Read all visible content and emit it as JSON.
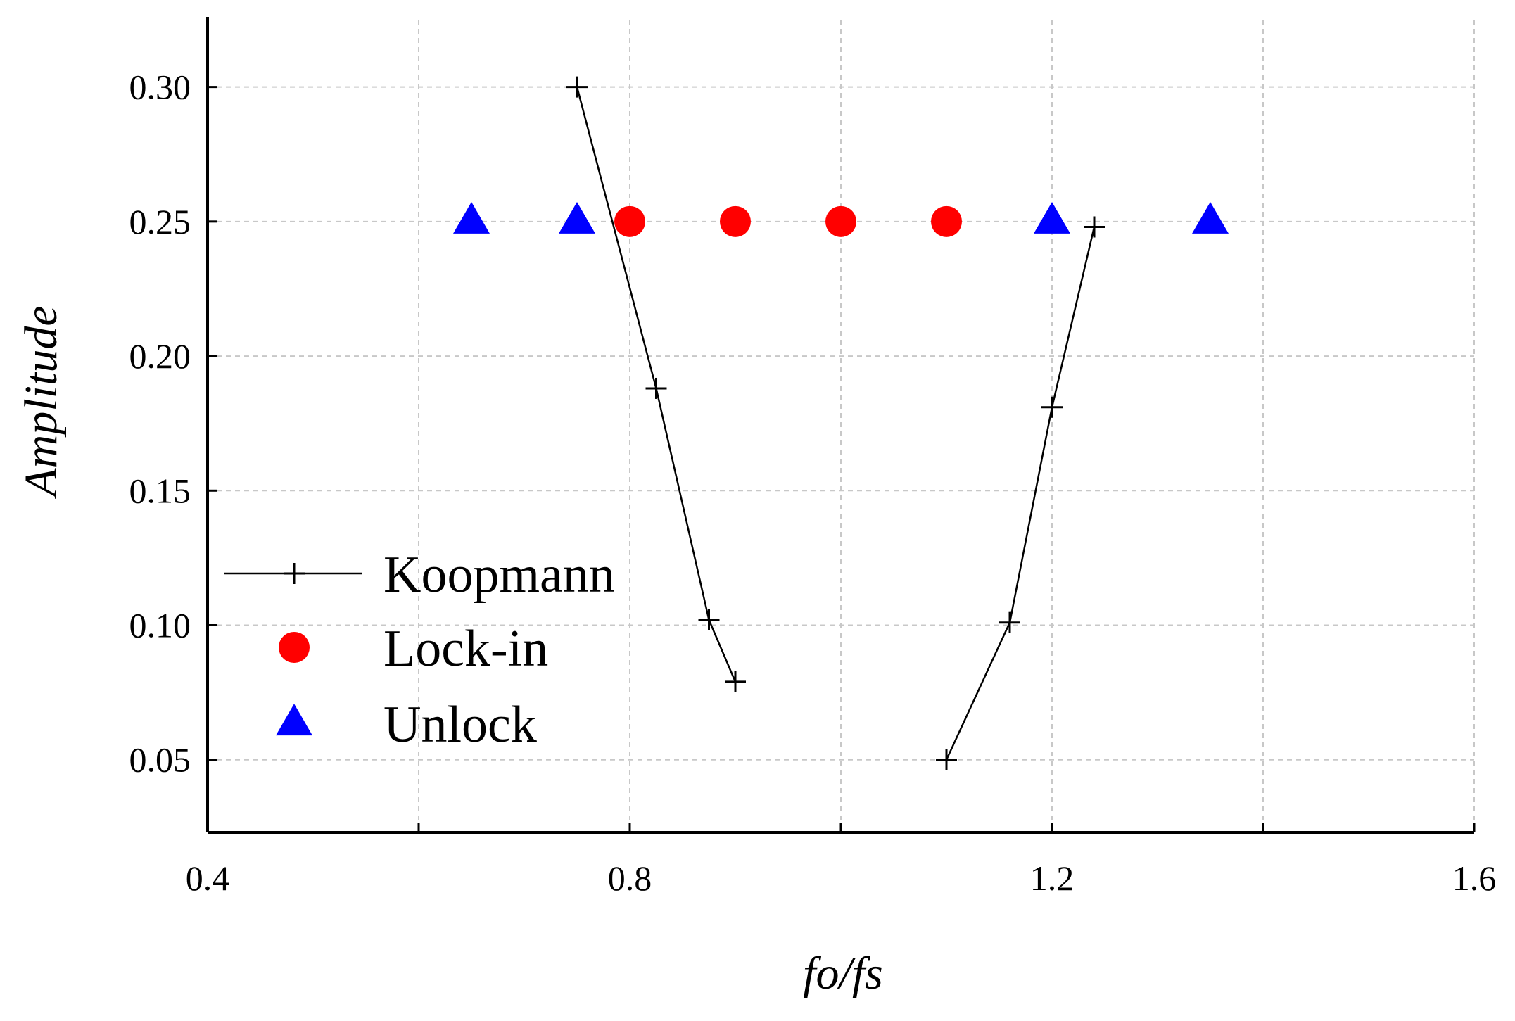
{
  "chart_data": {
    "type": "scatter",
    "title": "",
    "xlabel": "fo/fs",
    "ylabel": "Amplitude",
    "xlim": [
      0.4,
      1.6
    ],
    "ylim": [
      0.023,
      0.325
    ],
    "x_ticks": [
      0.4,
      0.8,
      1.2,
      1.6
    ],
    "x_tick_labels": [
      "0.4",
      "0.8",
      "1.2",
      "1.6"
    ],
    "x_minor_grid": [
      0.6,
      1.0,
      1.4
    ],
    "y_ticks": [
      0.05,
      0.1,
      0.15,
      0.2,
      0.25,
      0.3
    ],
    "y_tick_labels": [
      "0.05",
      "0.10",
      "0.15",
      "0.20",
      "0.25",
      "0.30"
    ],
    "grid": true,
    "legend_position": "lower-left",
    "series": [
      {
        "name": "Koopmann",
        "kind": "line-plus",
        "color": "#000000",
        "segments": [
          {
            "x": [
              0.75,
              0.825,
              0.875,
              0.9
            ],
            "y": [
              0.3,
              0.188,
              0.102,
              0.079
            ]
          },
          {
            "x": [
              1.1,
              1.16,
              1.2,
              1.24
            ],
            "y": [
              0.05,
              0.101,
              0.181,
              0.248
            ]
          }
        ]
      },
      {
        "name": "Lock-in",
        "kind": "circle",
        "color": "#ff0000",
        "x": [
          0.8,
          0.9,
          1.0,
          1.1
        ],
        "y": [
          0.25,
          0.25,
          0.25,
          0.25
        ]
      },
      {
        "name": "Unlock",
        "kind": "triangle",
        "color": "#0000ff",
        "x": [
          0.65,
          0.75,
          1.2,
          1.35
        ],
        "y": [
          0.25,
          0.25,
          0.25,
          0.25
        ]
      }
    ]
  }
}
